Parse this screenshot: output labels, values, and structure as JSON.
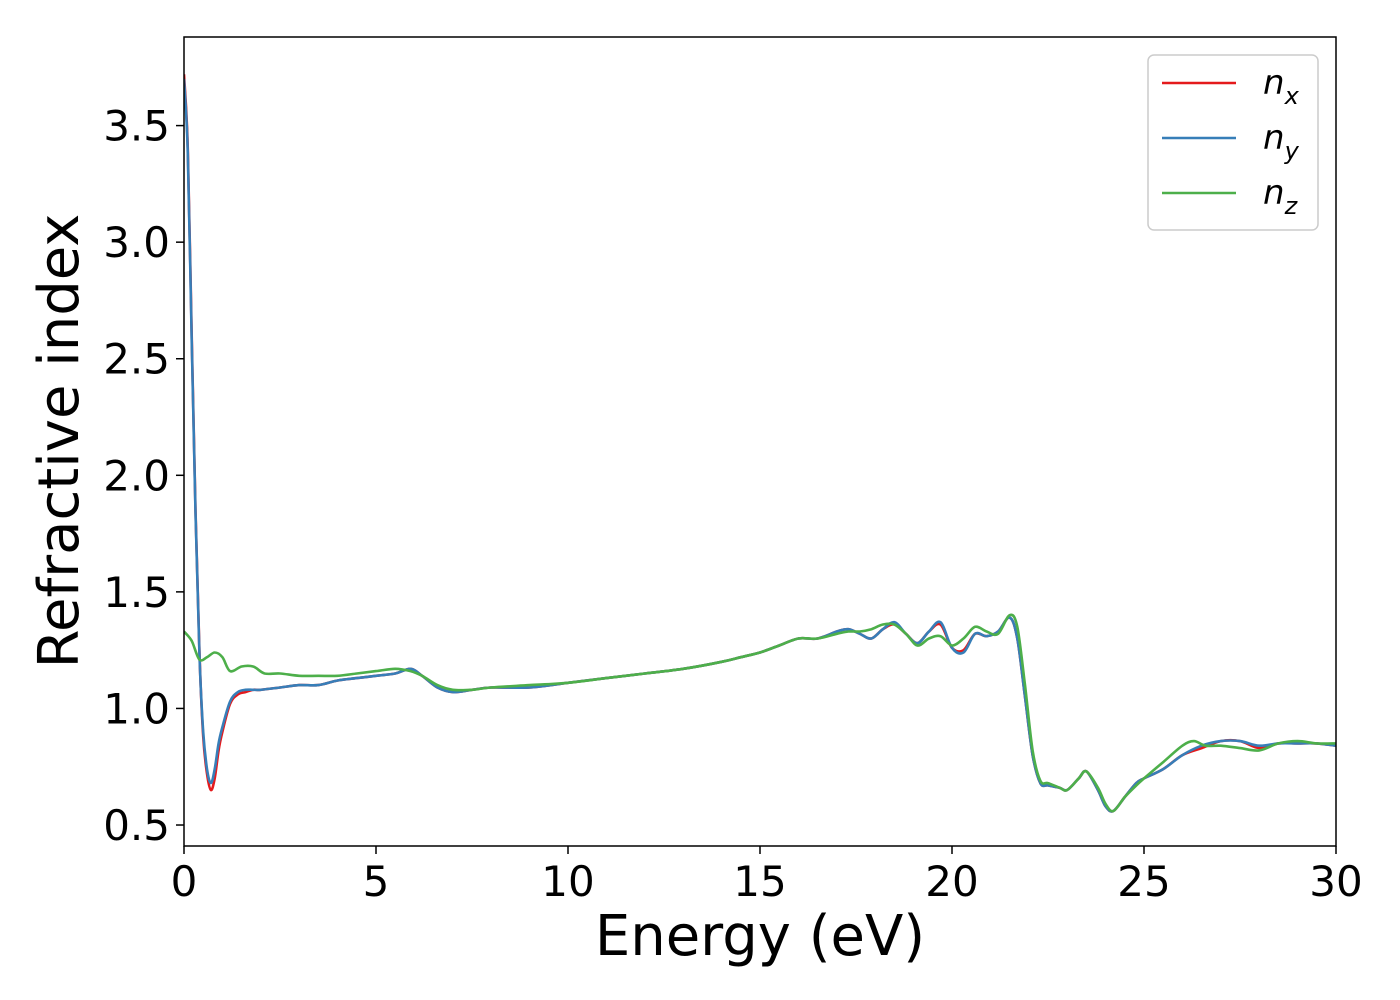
{
  "chart_data": {
    "type": "line",
    "xlabel": "Energy (eV)",
    "ylabel": "Refractive index",
    "xlim": [
      0,
      30
    ],
    "ylim": [
      0.41,
      3.88
    ],
    "xticks": [
      0,
      5,
      10,
      15,
      20,
      25,
      30
    ],
    "xtick_labels": [
      "0",
      "5",
      "10",
      "15",
      "20",
      "25",
      "30"
    ],
    "yticks": [
      0.5,
      1.0,
      1.5,
      2.0,
      2.5,
      3.0,
      3.5
    ],
    "ytick_labels": [
      "0.5",
      "1.0",
      "1.5",
      "2.0",
      "2.5",
      "3.0",
      "3.5"
    ],
    "grid": false,
    "legend_position": "top-right",
    "series": [
      {
        "name": "n",
        "subscript": "x",
        "color": "#e41a1c",
        "x": [
          0,
          0.1,
          0.2,
          0.3,
          0.4,
          0.5,
          0.6,
          0.7,
          0.8,
          0.9,
          1.0,
          1.2,
          1.4,
          1.6,
          1.8,
          2.0,
          2.5,
          3.0,
          3.5,
          4.0,
          4.5,
          5.0,
          5.5,
          5.9,
          6.2,
          6.6,
          7.0,
          7.5,
          8.0,
          9.0,
          10.0,
          11.0,
          12.0,
          13.0,
          14.0,
          14.5,
          15.0,
          15.5,
          16.0,
          16.5,
          17.0,
          17.3,
          17.6,
          17.9,
          18.2,
          18.5,
          18.8,
          19.1,
          19.4,
          19.7,
          20.0,
          20.3,
          20.6,
          20.9,
          21.2,
          21.5,
          21.7,
          21.9,
          22.1,
          22.3,
          22.5,
          22.8,
          23.0,
          23.3,
          23.5,
          23.8,
          24.0,
          24.2,
          24.5,
          24.8,
          25.0,
          25.5,
          26.0,
          26.5,
          27.0,
          27.5,
          28.0,
          28.5,
          29.0,
          29.5,
          30.0
        ],
        "y": [
          3.72,
          3.4,
          2.6,
          1.85,
          1.25,
          0.88,
          0.72,
          0.65,
          0.7,
          0.82,
          0.9,
          1.02,
          1.06,
          1.07,
          1.08,
          1.08,
          1.09,
          1.1,
          1.1,
          1.12,
          1.13,
          1.14,
          1.15,
          1.17,
          1.14,
          1.09,
          1.07,
          1.08,
          1.09,
          1.09,
          1.11,
          1.13,
          1.15,
          1.17,
          1.2,
          1.22,
          1.24,
          1.27,
          1.3,
          1.3,
          1.33,
          1.34,
          1.32,
          1.3,
          1.34,
          1.36,
          1.32,
          1.28,
          1.33,
          1.36,
          1.26,
          1.25,
          1.32,
          1.31,
          1.33,
          1.39,
          1.3,
          1.05,
          0.8,
          0.68,
          0.67,
          0.66,
          0.65,
          0.7,
          0.73,
          0.65,
          0.58,
          0.56,
          0.62,
          0.68,
          0.7,
          0.74,
          0.8,
          0.83,
          0.86,
          0.86,
          0.83,
          0.85,
          0.85,
          0.85,
          0.84
        ]
      },
      {
        "name": "n",
        "subscript": "y",
        "color": "#377eb8",
        "x": [
          0,
          0.1,
          0.2,
          0.3,
          0.4,
          0.5,
          0.6,
          0.7,
          0.8,
          0.9,
          1.0,
          1.2,
          1.4,
          1.6,
          1.8,
          2.0,
          2.5,
          3.0,
          3.5,
          4.0,
          4.5,
          5.0,
          5.5,
          5.9,
          6.2,
          6.6,
          7.0,
          7.5,
          8.0,
          9.0,
          10.0,
          11.0,
          12.0,
          13.0,
          14.0,
          14.5,
          15.0,
          15.5,
          16.0,
          16.5,
          17.0,
          17.3,
          17.6,
          17.9,
          18.2,
          18.5,
          18.8,
          19.1,
          19.4,
          19.7,
          20.0,
          20.3,
          20.6,
          20.9,
          21.2,
          21.5,
          21.7,
          21.9,
          22.1,
          22.3,
          22.5,
          22.8,
          23.0,
          23.3,
          23.5,
          23.8,
          24.0,
          24.2,
          24.5,
          24.8,
          25.0,
          25.5,
          26.0,
          26.5,
          27.0,
          27.5,
          28.0,
          28.5,
          29.0,
          29.5,
          30.0
        ],
        "y": [
          3.7,
          3.38,
          2.58,
          1.84,
          1.24,
          0.9,
          0.74,
          0.68,
          0.74,
          0.85,
          0.92,
          1.03,
          1.07,
          1.08,
          1.08,
          1.08,
          1.09,
          1.1,
          1.1,
          1.12,
          1.13,
          1.14,
          1.15,
          1.17,
          1.14,
          1.09,
          1.07,
          1.08,
          1.09,
          1.09,
          1.11,
          1.13,
          1.15,
          1.17,
          1.2,
          1.22,
          1.24,
          1.27,
          1.3,
          1.3,
          1.33,
          1.34,
          1.32,
          1.3,
          1.34,
          1.37,
          1.32,
          1.28,
          1.33,
          1.37,
          1.26,
          1.24,
          1.32,
          1.31,
          1.33,
          1.39,
          1.3,
          1.05,
          0.8,
          0.68,
          0.67,
          0.66,
          0.65,
          0.7,
          0.73,
          0.65,
          0.58,
          0.56,
          0.62,
          0.68,
          0.7,
          0.74,
          0.8,
          0.84,
          0.86,
          0.86,
          0.84,
          0.85,
          0.85,
          0.85,
          0.84
        ]
      },
      {
        "name": "n",
        "subscript": "z",
        "color": "#4daf4a",
        "x": [
          0,
          0.2,
          0.4,
          0.6,
          0.8,
          1.0,
          1.2,
          1.5,
          1.8,
          2.1,
          2.5,
          3.0,
          3.5,
          4.0,
          4.5,
          5.0,
          5.5,
          5.9,
          6.2,
          6.6,
          7.0,
          7.5,
          8.0,
          9.0,
          10.0,
          11.0,
          12.0,
          13.0,
          14.0,
          14.5,
          15.0,
          15.5,
          16.0,
          16.5,
          17.0,
          17.3,
          17.6,
          17.9,
          18.2,
          18.5,
          18.8,
          19.1,
          19.4,
          19.7,
          20.0,
          20.3,
          20.6,
          20.9,
          21.2,
          21.5,
          21.7,
          21.9,
          22.1,
          22.3,
          22.5,
          22.8,
          23.0,
          23.3,
          23.5,
          23.8,
          24.0,
          24.2,
          24.5,
          24.8,
          25.0,
          25.5,
          26.0,
          26.3,
          26.6,
          27.0,
          27.5,
          28.0,
          28.5,
          29.0,
          29.5,
          30.0
        ],
        "y": [
          1.33,
          1.29,
          1.21,
          1.22,
          1.24,
          1.22,
          1.16,
          1.18,
          1.18,
          1.15,
          1.15,
          1.14,
          1.14,
          1.14,
          1.15,
          1.16,
          1.17,
          1.16,
          1.14,
          1.1,
          1.08,
          1.08,
          1.09,
          1.1,
          1.11,
          1.13,
          1.15,
          1.17,
          1.2,
          1.22,
          1.24,
          1.27,
          1.3,
          1.3,
          1.32,
          1.33,
          1.33,
          1.34,
          1.36,
          1.36,
          1.32,
          1.27,
          1.3,
          1.31,
          1.27,
          1.3,
          1.35,
          1.33,
          1.32,
          1.4,
          1.35,
          1.1,
          0.82,
          0.69,
          0.68,
          0.66,
          0.65,
          0.7,
          0.73,
          0.66,
          0.59,
          0.56,
          0.62,
          0.67,
          0.7,
          0.77,
          0.84,
          0.86,
          0.84,
          0.84,
          0.83,
          0.82,
          0.85,
          0.86,
          0.85,
          0.85
        ]
      }
    ]
  }
}
